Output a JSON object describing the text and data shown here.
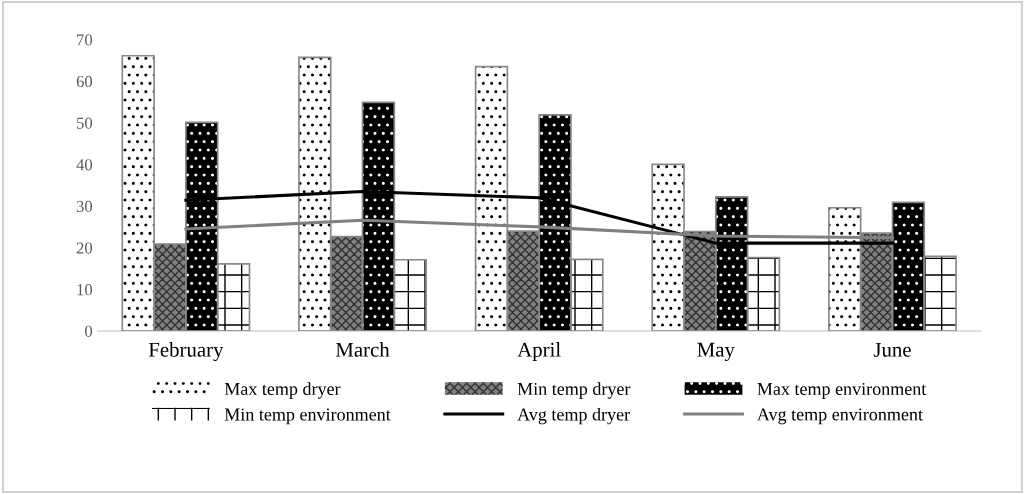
{
  "chart_data": {
    "type": "bar",
    "categories": [
      "February",
      "March",
      "April",
      "May",
      "June"
    ],
    "series": [
      {
        "name": "Max temp dryer",
        "color": "#ffffff",
        "values": [
          66.1,
          65.7,
          63.5,
          40.0,
          29.6
        ]
      },
      {
        "name": "Min temp dryer",
        "color": "#808080",
        "values": [
          20.9,
          22.7,
          24.0,
          23.9,
          23.5
        ]
      },
      {
        "name": "Max temp environment",
        "color": "#000000",
        "values": [
          50.1,
          54.9,
          51.9,
          32.2,
          30.9
        ]
      },
      {
        "name": "Min temp environment",
        "color": "#ffffff",
        "values": [
          16.1,
          17.1,
          17.2,
          17.6,
          17.9
        ]
      },
      {
        "name": "Avg temp dryer",
        "type": "line",
        "color": "#000000",
        "values": [
          31.4,
          33.5,
          32.0,
          21.1,
          21.1
        ]
      },
      {
        "name": "Avg temp environment",
        "type": "line",
        "color": "#808080",
        "values": [
          24.5,
          26.6,
          25.0,
          22.8,
          22.4
        ]
      }
    ],
    "ylim": [
      0,
      70
    ],
    "yticks": [
      0,
      10,
      20,
      30,
      40,
      50,
      60,
      70
    ],
    "grid": false,
    "legend": "bottom",
    "marker": "none",
    "line_style": "solid"
  }
}
